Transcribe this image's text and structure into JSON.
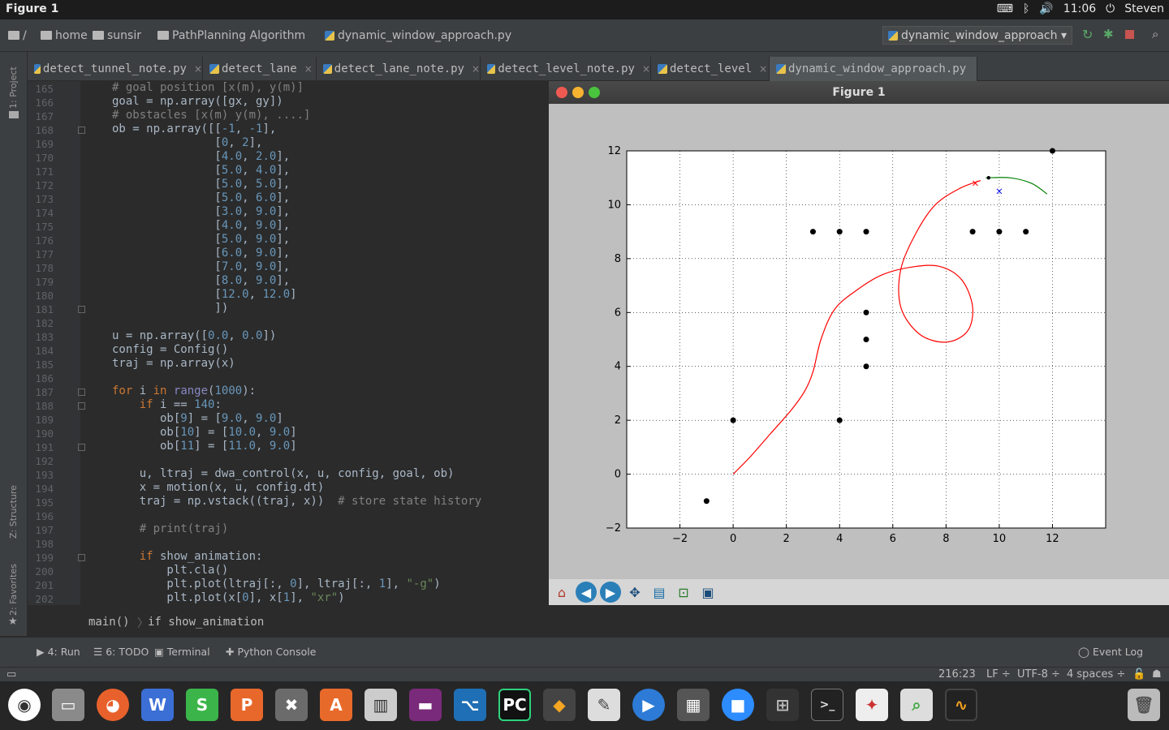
{
  "topbar": {
    "title": "Figure 1",
    "time": "11:06",
    "user": "Steven"
  },
  "nav": {
    "root": "/",
    "items": [
      "home",
      "sunsir",
      "PathPlanning Algorithm",
      "dynamic_window_approach.py"
    ],
    "run_config": "dynamic_window_approach"
  },
  "sidebar": {
    "project": "1: Project",
    "structure": "Z: Structure",
    "favorites": "2: Favorites"
  },
  "tabs": [
    "detect_tunnel_note.py",
    "detect_lane",
    "detect_lane_note.py",
    "detect_level_note.py",
    "detect_level",
    "dynamic_window_approach.py"
  ],
  "code": {
    "line_numbers": [
      "165",
      "166",
      "167",
      "168",
      "169",
      "170",
      "171",
      "172",
      "173",
      "174",
      "175",
      "176",
      "177",
      "178",
      "179",
      "180",
      "181",
      "182",
      "183",
      "184",
      "185",
      "186",
      "187",
      "188",
      "189",
      "190",
      "191",
      "192",
      "193",
      "194",
      "195",
      "196",
      "197",
      "198",
      "199",
      "200",
      "201",
      "202"
    ]
  },
  "figure": {
    "window_title": "Figure 1",
    "xticks": [
      "−2",
      "0",
      "2",
      "4",
      "6",
      "8",
      "10",
      "12"
    ],
    "yticks": [
      "12",
      "10",
      "8",
      "6",
      "4",
      "2",
      "0",
      "−2"
    ]
  },
  "chart_data": {
    "type": "line",
    "grid": true,
    "xlim": [
      -4,
      14
    ],
    "ylim": [
      -2,
      12
    ],
    "obstacles": [
      [
        -1,
        -1
      ],
      [
        0,
        2
      ],
      [
        4,
        2
      ],
      [
        5,
        4
      ],
      [
        5,
        5
      ],
      [
        5,
        6
      ],
      [
        3,
        9
      ],
      [
        4,
        9
      ],
      [
        5,
        9
      ],
      [
        9,
        9
      ],
      [
        10,
        9
      ],
      [
        11,
        9
      ],
      [
        12,
        12
      ]
    ],
    "series": [
      {
        "color": "#ff0000",
        "points": [
          [
            0,
            0
          ],
          [
            0.6,
            0.6
          ],
          [
            1.4,
            1.5
          ],
          [
            2.2,
            2.4
          ],
          [
            2.7,
            3.1
          ],
          [
            3,
            3.8
          ],
          [
            3.3,
            5
          ],
          [
            3.8,
            6.1
          ],
          [
            4.6,
            6.8
          ],
          [
            5.6,
            7.4
          ],
          [
            6.8,
            7.7
          ],
          [
            7.8,
            7.7
          ],
          [
            8.6,
            7.2
          ],
          [
            9,
            6.2
          ],
          [
            8.8,
            5.3
          ],
          [
            8,
            4.9
          ],
          [
            7,
            5.2
          ],
          [
            6.3,
            6.2
          ],
          [
            6.3,
            7.6
          ],
          [
            6.9,
            9
          ],
          [
            7.6,
            10
          ],
          [
            8.5,
            10.6
          ],
          [
            9.3,
            10.9
          ]
        ]
      },
      {
        "color": "#008000",
        "points": [
          [
            9.5,
            11
          ],
          [
            10.4,
            11
          ],
          [
            11.2,
            10.8
          ],
          [
            11.8,
            10.4
          ]
        ]
      }
    ],
    "markers": [
      {
        "x": 9.1,
        "y": 10.8,
        "symbol": "x",
        "color": "#ff0000"
      },
      {
        "x": 10,
        "y": 10.5,
        "symbol": "x",
        "color": "#0000ff"
      }
    ]
  },
  "toolbar": [
    "home-icon",
    "back-icon",
    "forward-icon",
    "pan-icon",
    "subplots-icon",
    "zoom-icon",
    "save-icon"
  ],
  "breadcrumb": {
    "func": "main()",
    "block": "if show_animation"
  },
  "toolwindows": {
    "run": "4: Run",
    "todo": "6: TODO",
    "terminal": "Terminal",
    "console": "Python Console",
    "eventlog": "Event Log"
  },
  "status": {
    "position": "216:23",
    "lf": "LF ÷",
    "encoding": "UTF-8 ÷",
    "indent": "4 spaces ÷"
  },
  "dock": [
    "ubuntu",
    "files",
    "firefox",
    "writer",
    "calc",
    "impress",
    "settings",
    "software",
    "mixer",
    "terminal2",
    "vscode",
    "pycharm",
    "sublime",
    "tools",
    "video",
    "video2",
    "zoom",
    "workspaces",
    "terminal",
    "pdf",
    "viewer",
    "scope",
    "trash"
  ]
}
